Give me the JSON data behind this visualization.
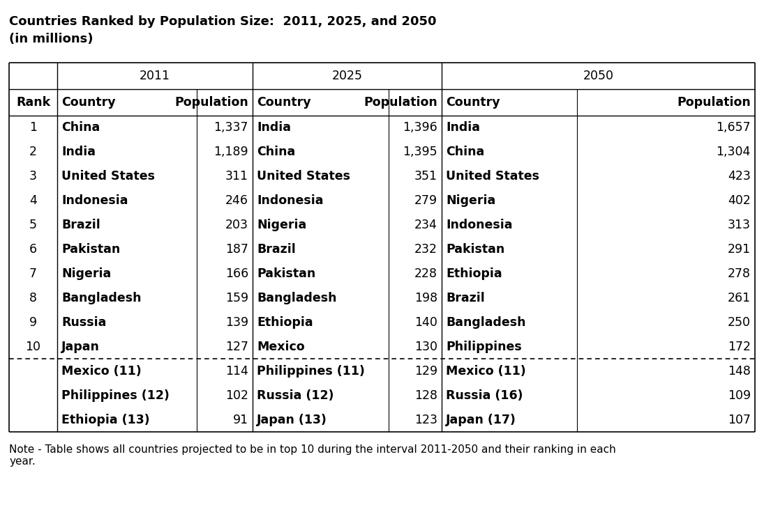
{
  "title": "Countries Ranked by Population Size:  2011, 2025, and 2050",
  "subtitle": "(in millions)",
  "note": "Note - Table shows all countries projected to be in top 10 during the interval 2011-2050 and their ranking in each\nyear.",
  "rows": [
    [
      "1",
      "China",
      "1,337",
      "India",
      "1,396",
      "India",
      "1,657"
    ],
    [
      "2",
      "India",
      "1,189",
      "China",
      "1,395",
      "China",
      "1,304"
    ],
    [
      "3",
      "United States",
      "311",
      "United States",
      "351",
      "United States",
      "423"
    ],
    [
      "4",
      "Indonesia",
      "246",
      "Indonesia",
      "279",
      "Nigeria",
      "402"
    ],
    [
      "5",
      "Brazil",
      "203",
      "Nigeria",
      "234",
      "Indonesia",
      "313"
    ],
    [
      "6",
      "Pakistan",
      "187",
      "Brazil",
      "232",
      "Pakistan",
      "291"
    ],
    [
      "7",
      "Nigeria",
      "166",
      "Pakistan",
      "228",
      "Ethiopia",
      "278"
    ],
    [
      "8",
      "Bangladesh",
      "159",
      "Bangladesh",
      "198",
      "Brazil",
      "261"
    ],
    [
      "9",
      "Russia",
      "139",
      "Ethiopia",
      "140",
      "Bangladesh",
      "250"
    ],
    [
      "10",
      "Japan",
      "127",
      "Mexico",
      "130",
      "Philippines",
      "172"
    ]
  ],
  "extra_rows": [
    [
      "Mexico (11)",
      "114",
      "Philippines (11)",
      "129",
      "Mexico (11)",
      "148"
    ],
    [
      "Philippines (12)",
      "102",
      "Russia (12)",
      "128",
      "Russia (16)",
      "109"
    ],
    [
      "Ethiopia (13)",
      "91",
      "Japan (13)",
      "123",
      "Japan (17)",
      "107"
    ]
  ],
  "background_color": "#ffffff",
  "text_color": "#000000"
}
